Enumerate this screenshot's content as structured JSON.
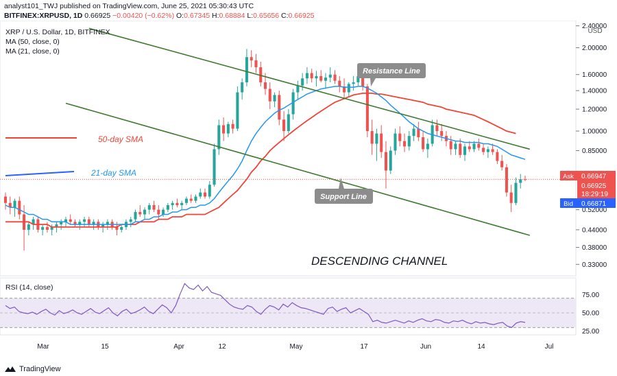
{
  "header": {
    "publisher": "analyst101_TWJ published on TradingView.com, June 25, 2021 05:30:43 UTC",
    "symbol_line": "BITFINEX:XRPUSD, 1D",
    "last": "0.66925",
    "change": "−0.00420 (−0.62%)",
    "o_label": "O:",
    "o": "0.67345",
    "h_label": "H:",
    "h": "0.68884",
    "l_label": "L:",
    "l": "0.65656",
    "c_label": "C:",
    "c": "0.66925"
  },
  "legend": {
    "title": "XRP / U.S. Dollar, 1D, BITFINEX",
    "ma50": "MA (50, close, 0)",
    "ma21": "MA (21, close, 0)"
  },
  "annotations": {
    "sma50": "50-day SMA",
    "sma21": "21-day SMA",
    "resistance": "Resistance Line",
    "support": "Support Line",
    "channel": "DESCENDING CHANNEL"
  },
  "price_axis": {
    "currency": "USD",
    "ticks": [
      "2.40000",
      "2.00000",
      "1.60000",
      "1.40000",
      "1.20000",
      "1.00000",
      "0.85000",
      "0.52000",
      "0.44000",
      "0.38000",
      "0.33000"
    ],
    "ask_label": "Ask",
    "ask": "0.66947",
    "last": "0.66925",
    "countdown": "18:29:19",
    "bid_label": "Bid",
    "bid": "0.66871"
  },
  "rsi": {
    "label": "RSI (14, close)",
    "ticks": [
      "75.00",
      "50.00",
      "25.00"
    ],
    "upper": 70,
    "lower": 30,
    "values": [
      60,
      56,
      58,
      52,
      50,
      49,
      51,
      48,
      52,
      55,
      50,
      47,
      53,
      49,
      51,
      54,
      50,
      48,
      52,
      56,
      51,
      49,
      53,
      57,
      50,
      46,
      52,
      55,
      49,
      51,
      54,
      58,
      52,
      49,
      55,
      61,
      57,
      50,
      60,
      76,
      90,
      84,
      82,
      88,
      80,
      86,
      78,
      76,
      74,
      68,
      62,
      58,
      56,
      55,
      60,
      58,
      52,
      48,
      55,
      60,
      58,
      54,
      62,
      58,
      64,
      60,
      57,
      56,
      54,
      52,
      50,
      48,
      56,
      58,
      52,
      55,
      57,
      50,
      53,
      56,
      52,
      48,
      38,
      40,
      37,
      36,
      38,
      40,
      38,
      36,
      39,
      37,
      40,
      42,
      39,
      38,
      41,
      40,
      37,
      36,
      39,
      38,
      40,
      37,
      35,
      38,
      36,
      37,
      35,
      34,
      36,
      37,
      32,
      30,
      36,
      38,
      37
    ]
  },
  "time_axis": [
    "Mar",
    "15",
    "Apr",
    "12",
    "May",
    "17",
    "Jun",
    "14",
    "Jul"
  ],
  "chart_data": {
    "type": "candlestick",
    "symbol": "XRP / U.S. Dollar",
    "timeframe": "1D",
    "exchange": "BITFINEX",
    "scale": "log",
    "ylim": [
      0.3,
      2.45
    ],
    "candles": [
      [
        0.58,
        0.6,
        0.52,
        0.55
      ],
      [
        0.55,
        0.58,
        0.5,
        0.53
      ],
      [
        0.53,
        0.57,
        0.49,
        0.56
      ],
      [
        0.56,
        0.58,
        0.48,
        0.5
      ],
      [
        0.5,
        0.54,
        0.37,
        0.44
      ],
      [
        0.44,
        0.47,
        0.42,
        0.46
      ],
      [
        0.46,
        0.49,
        0.44,
        0.48
      ],
      [
        0.48,
        0.49,
        0.43,
        0.44
      ],
      [
        0.44,
        0.46,
        0.42,
        0.45
      ],
      [
        0.45,
        0.47,
        0.43,
        0.44
      ],
      [
        0.44,
        0.46,
        0.42,
        0.45
      ],
      [
        0.45,
        0.47,
        0.43,
        0.46
      ],
      [
        0.46,
        0.48,
        0.44,
        0.47
      ],
      [
        0.47,
        0.49,
        0.45,
        0.48
      ],
      [
        0.48,
        0.5,
        0.46,
        0.47
      ],
      [
        0.47,
        0.48,
        0.45,
        0.46
      ],
      [
        0.46,
        0.48,
        0.44,
        0.47
      ],
      [
        0.47,
        0.49,
        0.45,
        0.48
      ],
      [
        0.48,
        0.49,
        0.45,
        0.46
      ],
      [
        0.46,
        0.48,
        0.44,
        0.47
      ],
      [
        0.47,
        0.48,
        0.44,
        0.45
      ],
      [
        0.45,
        0.47,
        0.43,
        0.46
      ],
      [
        0.46,
        0.48,
        0.44,
        0.47
      ],
      [
        0.47,
        0.48,
        0.44,
        0.45
      ],
      [
        0.45,
        0.47,
        0.42,
        0.44
      ],
      [
        0.44,
        0.46,
        0.43,
        0.45
      ],
      [
        0.45,
        0.48,
        0.44,
        0.47
      ],
      [
        0.47,
        0.49,
        0.45,
        0.48
      ],
      [
        0.48,
        0.52,
        0.47,
        0.51
      ],
      [
        0.51,
        0.54,
        0.49,
        0.5
      ],
      [
        0.5,
        0.53,
        0.48,
        0.52
      ],
      [
        0.52,
        0.55,
        0.5,
        0.54
      ],
      [
        0.54,
        0.56,
        0.51,
        0.52
      ],
      [
        0.52,
        0.54,
        0.48,
        0.5
      ],
      [
        0.5,
        0.53,
        0.49,
        0.52
      ],
      [
        0.52,
        0.55,
        0.51,
        0.54
      ],
      [
        0.54,
        0.56,
        0.52,
        0.55
      ],
      [
        0.55,
        0.57,
        0.53,
        0.54
      ],
      [
        0.54,
        0.56,
        0.52,
        0.55
      ],
      [
        0.55,
        0.58,
        0.54,
        0.57
      ],
      [
        0.57,
        0.59,
        0.55,
        0.56
      ],
      [
        0.56,
        0.59,
        0.55,
        0.58
      ],
      [
        0.58,
        0.62,
        0.57,
        0.6
      ],
      [
        0.6,
        0.62,
        0.57,
        0.58
      ],
      [
        0.58,
        0.66,
        0.57,
        0.64
      ],
      [
        0.64,
        0.9,
        0.63,
        0.86
      ],
      [
        0.86,
        1.1,
        0.82,
        1.05
      ],
      [
        1.05,
        1.12,
        0.92,
        0.98
      ],
      [
        0.98,
        1.08,
        0.95,
        1.06
      ],
      [
        1.06,
        1.1,
        0.98,
        1.02
      ],
      [
        1.02,
        1.45,
        1.0,
        1.38
      ],
      [
        1.38,
        1.55,
        1.3,
        1.5
      ],
      [
        1.5,
        1.98,
        1.45,
        1.85
      ],
      [
        1.85,
        1.96,
        1.7,
        1.8
      ],
      [
        1.8,
        1.9,
        1.62,
        1.7
      ],
      [
        1.7,
        1.78,
        1.45,
        1.5
      ],
      [
        1.5,
        1.62,
        1.35,
        1.42
      ],
      [
        1.42,
        1.5,
        1.2,
        1.28
      ],
      [
        1.28,
        1.38,
        1.22,
        1.35
      ],
      [
        1.35,
        1.4,
        1.05,
        1.1
      ],
      [
        1.1,
        1.18,
        0.92,
        1.0
      ],
      [
        1.0,
        1.2,
        0.98,
        1.15
      ],
      [
        1.15,
        1.42,
        1.1,
        1.38
      ],
      [
        1.38,
        1.52,
        1.3,
        1.46
      ],
      [
        1.46,
        1.62,
        1.4,
        1.55
      ],
      [
        1.55,
        1.7,
        1.48,
        1.62
      ],
      [
        1.62,
        1.68,
        1.5,
        1.55
      ],
      [
        1.55,
        1.65,
        1.45,
        1.58
      ],
      [
        1.58,
        1.66,
        1.5,
        1.52
      ],
      [
        1.52,
        1.62,
        1.42,
        1.56
      ],
      [
        1.56,
        1.7,
        1.5,
        1.6
      ],
      [
        1.6,
        1.66,
        1.48,
        1.52
      ],
      [
        1.52,
        1.58,
        1.38,
        1.45
      ],
      [
        1.45,
        1.55,
        1.3,
        1.38
      ],
      [
        1.38,
        1.5,
        1.32,
        1.48
      ],
      [
        1.48,
        1.58,
        1.4,
        1.5
      ],
      [
        1.5,
        1.62,
        1.45,
        1.58
      ],
      [
        1.58,
        1.62,
        1.4,
        1.45
      ],
      [
        1.45,
        1.48,
        0.95,
        1.0
      ],
      [
        1.0,
        1.1,
        0.82,
        0.9
      ],
      [
        0.9,
        1.02,
        0.78,
        0.98
      ],
      [
        0.98,
        1.05,
        0.8,
        0.84
      ],
      [
        0.84,
        0.92,
        0.62,
        0.72
      ],
      [
        0.72,
        0.88,
        0.7,
        0.85
      ],
      [
        0.85,
        1.02,
        0.82,
        0.98
      ],
      [
        0.98,
        1.04,
        0.88,
        0.92
      ],
      [
        0.92,
        0.98,
        0.84,
        0.88
      ],
      [
        0.88,
        1.0,
        0.85,
        0.96
      ],
      [
        0.96,
        1.06,
        0.92,
        1.02
      ],
      [
        1.02,
        1.08,
        0.92,
        0.95
      ],
      [
        0.95,
        1.0,
        0.84,
        0.86
      ],
      [
        0.86,
        0.94,
        0.8,
        0.9
      ],
      [
        0.9,
        1.1,
        0.88,
        1.05
      ],
      [
        1.05,
        1.1,
        0.96,
        1.0
      ],
      [
        1.0,
        1.06,
        0.92,
        0.96
      ],
      [
        0.96,
        1.0,
        0.88,
        0.92
      ],
      [
        0.92,
        0.96,
        0.82,
        0.86
      ],
      [
        0.86,
        0.92,
        0.82,
        0.9
      ],
      [
        0.9,
        0.94,
        0.8,
        0.82
      ],
      [
        0.82,
        0.9,
        0.78,
        0.88
      ],
      [
        0.88,
        0.92,
        0.84,
        0.86
      ],
      [
        0.86,
        0.92,
        0.84,
        0.9
      ],
      [
        0.9,
        0.94,
        0.85,
        0.87
      ],
      [
        0.87,
        0.9,
        0.82,
        0.84
      ],
      [
        0.84,
        0.88,
        0.8,
        0.86
      ],
      [
        0.86,
        0.9,
        0.82,
        0.84
      ],
      [
        0.84,
        0.86,
        0.76,
        0.78
      ],
      [
        0.78,
        0.82,
        0.72,
        0.74
      ],
      [
        0.74,
        0.76,
        0.58,
        0.6
      ],
      [
        0.6,
        0.64,
        0.51,
        0.55
      ],
      [
        0.55,
        0.68,
        0.54,
        0.65
      ],
      [
        0.65,
        0.7,
        0.62,
        0.67
      ],
      [
        0.67,
        0.69,
        0.66,
        0.669
      ]
    ],
    "ma21": [
      0.54,
      0.53,
      0.53,
      0.52,
      0.51,
      0.5,
      0.5,
      0.49,
      0.48,
      0.48,
      0.47,
      0.47,
      0.47,
      0.47,
      0.46,
      0.46,
      0.46,
      0.46,
      0.46,
      0.46,
      0.46,
      0.46,
      0.46,
      0.46,
      0.46,
      0.46,
      0.46,
      0.46,
      0.47,
      0.47,
      0.48,
      0.48,
      0.49,
      0.49,
      0.5,
      0.5,
      0.51,
      0.51,
      0.52,
      0.52,
      0.53,
      0.53,
      0.54,
      0.54,
      0.55,
      0.57,
      0.6,
      0.63,
      0.66,
      0.69,
      0.73,
      0.78,
      0.85,
      0.92,
      0.98,
      1.03,
      1.08,
      1.12,
      1.16,
      1.19,
      1.21,
      1.24,
      1.27,
      1.3,
      1.33,
      1.36,
      1.38,
      1.4,
      1.42,
      1.43,
      1.44,
      1.45,
      1.45,
      1.44,
      1.44,
      1.44,
      1.45,
      1.45,
      1.43,
      1.4,
      1.37,
      1.33,
      1.29,
      1.24,
      1.2,
      1.16,
      1.12,
      1.08,
      1.05,
      1.02,
      1.0,
      0.98,
      0.97,
      0.96,
      0.95,
      0.94,
      0.93,
      0.92,
      0.92,
      0.91,
      0.91,
      0.91,
      0.91,
      0.9,
      0.9,
      0.89,
      0.88,
      0.86,
      0.84,
      0.82,
      0.81,
      0.8,
      0.79
    ],
    "ma50": [
      0.47,
      0.47,
      0.47,
      0.47,
      0.47,
      0.47,
      0.46,
      0.46,
      0.46,
      0.46,
      0.45,
      0.45,
      0.45,
      0.45,
      0.45,
      0.45,
      0.45,
      0.45,
      0.45,
      0.45,
      0.45,
      0.45,
      0.45,
      0.45,
      0.45,
      0.46,
      0.46,
      0.46,
      0.46,
      0.47,
      0.47,
      0.47,
      0.47,
      0.48,
      0.48,
      0.48,
      0.49,
      0.49,
      0.49,
      0.5,
      0.5,
      0.5,
      0.5,
      0.5,
      0.51,
      0.52,
      0.53,
      0.55,
      0.57,
      0.59,
      0.61,
      0.64,
      0.67,
      0.71,
      0.74,
      0.78,
      0.81,
      0.85,
      0.88,
      0.91,
      0.94,
      0.97,
      1.0,
      1.03,
      1.06,
      1.09,
      1.12,
      1.15,
      1.18,
      1.21,
      1.24,
      1.27,
      1.29,
      1.31,
      1.33,
      1.35,
      1.36,
      1.37,
      1.37,
      1.37,
      1.36,
      1.36,
      1.35,
      1.34,
      1.33,
      1.32,
      1.31,
      1.3,
      1.29,
      1.28,
      1.27,
      1.25,
      1.24,
      1.23,
      1.22,
      1.2,
      1.19,
      1.18,
      1.17,
      1.16,
      1.15,
      1.14,
      1.12,
      1.1,
      1.08,
      1.06,
      1.04,
      1.02,
      1.0,
      0.99,
      0.98
    ],
    "channel_upper": {
      "from": [
        18,
        2.35
      ],
      "to": [
        113,
        0.86
      ]
    },
    "channel_lower": {
      "from": [
        13,
        1.26
      ],
      "to": [
        113,
        0.42
      ]
    },
    "colors": {
      "up": "#26a69a",
      "down": "#ef5350",
      "ma21": "#2196f3",
      "ma50": "#f44336",
      "channel": "#3c7a2d",
      "rsi": "#7e57c2"
    }
  }
}
